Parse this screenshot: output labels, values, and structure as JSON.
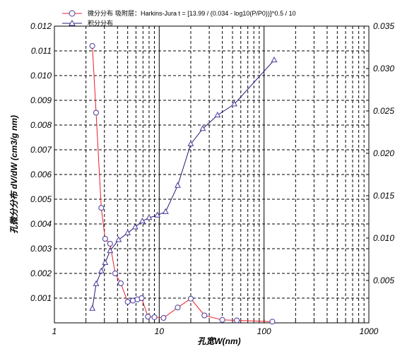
{
  "chart_data": {
    "type": "line",
    "xlabel": "孔宽W(nm)",
    "ylabel": "孔微分分布 dV/dW (cm3/g nm)",
    "x_scale": "log",
    "xlim": [
      1,
      1000
    ],
    "ylim_left": [
      0,
      0.012
    ],
    "ylim_right": [
      0,
      0.035
    ],
    "grid": true,
    "legend_placement": "top-left",
    "x_ticks": [
      "1",
      "10",
      "100",
      "1000"
    ],
    "y_ticks_left": [
      "0.001",
      "0.002",
      "0.003",
      "0.004",
      "0.005",
      "0.006",
      "0.007",
      "0.008",
      "0.009",
      "0.010",
      "0.011",
      "0.012"
    ],
    "y_ticks_right": [
      "0.005",
      "0.010",
      "0.015",
      "0.020",
      "0.025",
      "0.030",
      "0.035"
    ],
    "series": [
      {
        "name": "微分分布",
        "axis": "left",
        "color": "#e8202a",
        "marker": "circle",
        "x": [
          2.3,
          2.5,
          2.8,
          3.05,
          3.4,
          3.8,
          4.3,
          5.0,
          5.6,
          6.2,
          6.8,
          7.8,
          9.0,
          11.0,
          15.0,
          20.0,
          27.0,
          40.0,
          55.0,
          120.0
        ],
        "y": [
          0.0112,
          0.0085,
          0.00465,
          0.0034,
          0.0032,
          0.002,
          0.0016,
          0.00085,
          0.0009,
          0.00095,
          0.001,
          0.00025,
          0.00023,
          0.0002,
          0.00062,
          0.00098,
          0.0003,
          0.00012,
          0.0001,
          5e-05
        ]
      },
      {
        "name": "积分分布",
        "axis": "right",
        "color": "#1c1c74",
        "marker": "triangle",
        "x": [
          2.3,
          2.5,
          2.8,
          3.05,
          3.4,
          4.1,
          5.0,
          5.9,
          6.9,
          8.0,
          9.6,
          11.5,
          15.0,
          20.0,
          26.0,
          36.0,
          52.0,
          125.0
        ],
        "y": [
          0.0017,
          0.0046,
          0.0061,
          0.0071,
          0.0085,
          0.0098,
          0.0106,
          0.0113,
          0.012,
          0.0124,
          0.0127,
          0.0131,
          0.0162,
          0.0211,
          0.0229,
          0.0245,
          0.0258,
          0.031
        ]
      }
    ],
    "legend": [
      {
        "label": "微分分布",
        "note": "吸附层：Harkins-Jura  t = [13.99 / (0.034 - log10(P/P0))]^0.5 / 10"
      },
      {
        "label": "积分分布",
        "note": ""
      }
    ]
  }
}
